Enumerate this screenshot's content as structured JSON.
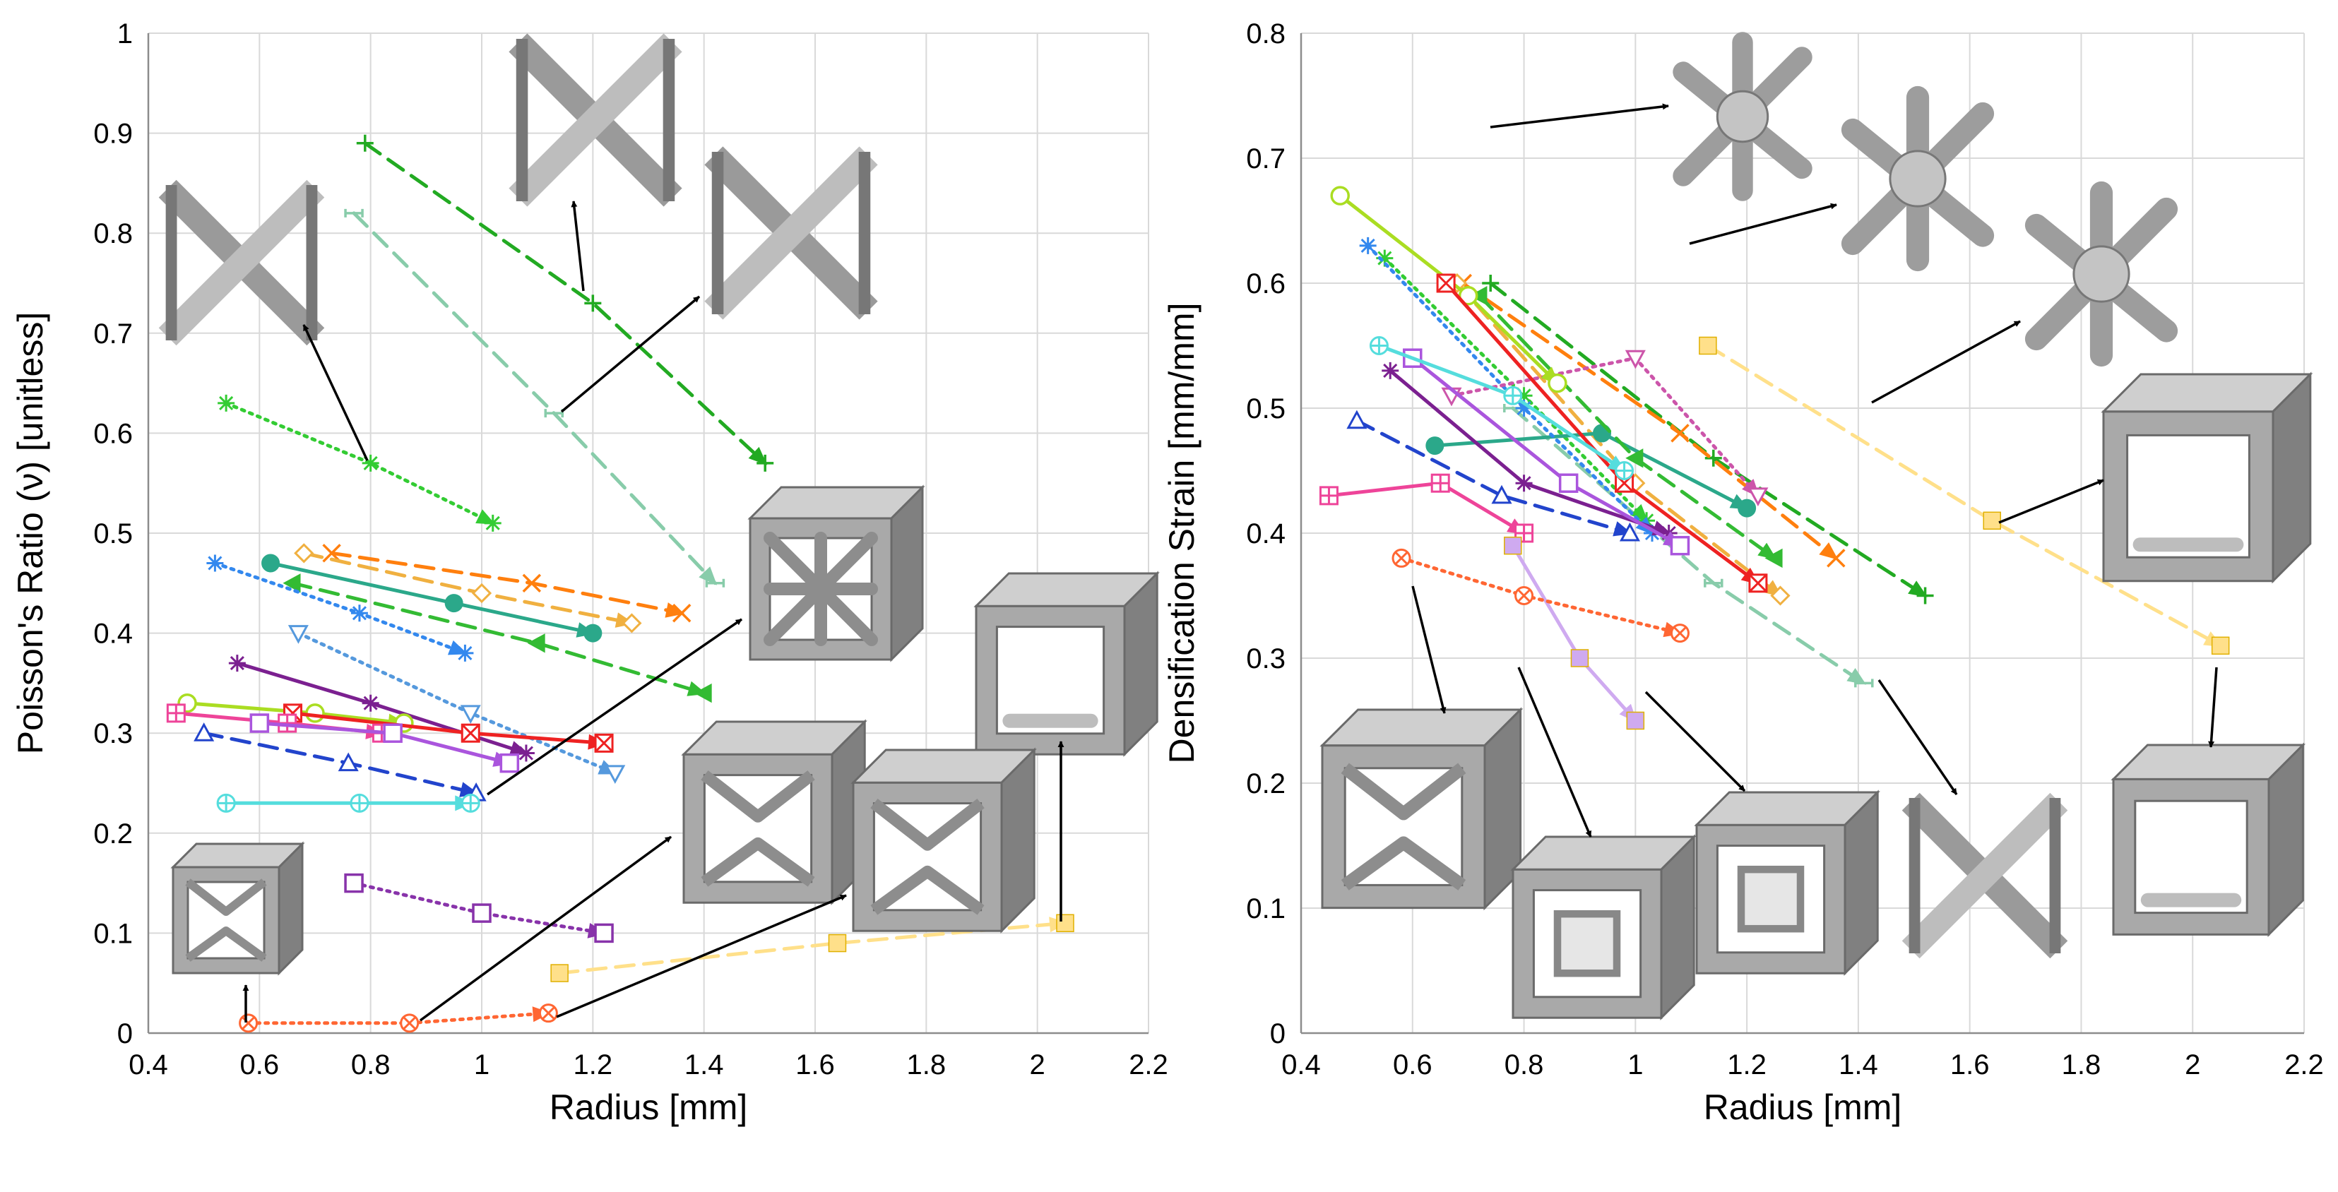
{
  "chart_data": [
    {
      "type": "scatter",
      "title": "",
      "xlabel": "Radius [mm]",
      "ylabel": "Poisson's Ratio (ν) [unitless]",
      "xlim": [
        0.4,
        2.2
      ],
      "ylim": [
        0,
        1
      ],
      "xticks": [
        "0.4",
        "0.6",
        "0.8",
        "1",
        "1.2",
        "1.4",
        "1.6",
        "1.8",
        "2",
        "2.2"
      ],
      "yticks": [
        "0",
        "0.1",
        "0.2",
        "0.3",
        "0.4",
        "0.5",
        "0.6",
        "0.7",
        "0.8",
        "0.9",
        "1"
      ],
      "grid": true,
      "legend": "none",
      "series": [
        {
          "name": "s1",
          "color": "#22aa22",
          "marker": "plus",
          "dash": "long",
          "points": [
            [
              0.79,
              0.89
            ],
            [
              1.2,
              0.73
            ],
            [
              1.51,
              0.57
            ]
          ]
        },
        {
          "name": "s2",
          "color": "#88ccaa",
          "marker": "bar",
          "dash": "long",
          "points": [
            [
              0.77,
              0.82
            ],
            [
              1.13,
              0.62
            ],
            [
              1.42,
              0.45
            ]
          ]
        },
        {
          "name": "s3",
          "color": "#33cc33",
          "marker": "asterisk",
          "dash": "dot",
          "points": [
            [
              0.54,
              0.63
            ],
            [
              0.8,
              0.57
            ],
            [
              1.02,
              0.51
            ]
          ]
        },
        {
          "name": "s4",
          "color": "#ff7f0e",
          "marker": "x",
          "dash": "long",
          "points": [
            [
              0.73,
              0.48
            ],
            [
              1.09,
              0.45
            ],
            [
              1.36,
              0.42
            ]
          ]
        },
        {
          "name": "s5",
          "color": "#f0b040",
          "marker": "diamond-open",
          "dash": "long",
          "points": [
            [
              0.68,
              0.48
            ],
            [
              1.0,
              0.44
            ],
            [
              1.27,
              0.41
            ]
          ]
        },
        {
          "name": "s6",
          "color": "#2ba88a",
          "marker": "circle-fill",
          "dash": "solid",
          "points": [
            [
              0.62,
              0.47
            ],
            [
              0.95,
              0.43
            ],
            [
              1.2,
              0.4
            ]
          ]
        },
        {
          "name": "s7",
          "color": "#33bb33",
          "marker": "tri-left",
          "dash": "long",
          "points": [
            [
              0.66,
              0.45
            ],
            [
              1.1,
              0.39
            ],
            [
              1.4,
              0.34
            ]
          ]
        },
        {
          "name": "s8",
          "color": "#3388ee",
          "marker": "asterisk",
          "dash": "dot",
          "points": [
            [
              0.52,
              0.47
            ],
            [
              0.78,
              0.42
            ],
            [
              0.97,
              0.38
            ]
          ]
        },
        {
          "name": "s9",
          "color": "#5599dd",
          "marker": "tri-down",
          "dash": "dot",
          "points": [
            [
              0.67,
              0.4
            ],
            [
              0.98,
              0.32
            ],
            [
              1.24,
              0.26
            ]
          ]
        },
        {
          "name": "s10",
          "color": "#7b2090",
          "marker": "asterisk",
          "dash": "solid",
          "points": [
            [
              0.56,
              0.37
            ],
            [
              0.8,
              0.33
            ],
            [
              1.08,
              0.28
            ]
          ]
        },
        {
          "name": "s11",
          "color": "#aadd22",
          "marker": "circle-open",
          "dash": "solid",
          "points": [
            [
              0.47,
              0.33
            ],
            [
              0.7,
              0.32
            ],
            [
              0.86,
              0.31
            ]
          ]
        },
        {
          "name": "s12",
          "color": "#ee2222",
          "marker": "square-x",
          "dash": "solid",
          "points": [
            [
              0.66,
              0.32
            ],
            [
              0.98,
              0.3
            ],
            [
              1.22,
              0.29
            ]
          ]
        },
        {
          "name": "s13",
          "color": "#ee4499",
          "marker": "square-plus",
          "dash": "solid",
          "points": [
            [
              0.45,
              0.32
            ],
            [
              0.65,
              0.31
            ],
            [
              0.82,
              0.3
            ]
          ]
        },
        {
          "name": "s14",
          "color": "#aa55dd",
          "marker": "square-open",
          "dash": "solid",
          "points": [
            [
              0.6,
              0.31
            ],
            [
              0.84,
              0.3
            ],
            [
              1.05,
              0.27
            ]
          ]
        },
        {
          "name": "s15",
          "color": "#2244cc",
          "marker": "tri-up",
          "dash": "long",
          "points": [
            [
              0.5,
              0.3
            ],
            [
              0.76,
              0.27
            ],
            [
              0.99,
              0.24
            ]
          ]
        },
        {
          "name": "s16",
          "color": "#55dddd",
          "marker": "circle-plus",
          "dash": "solid",
          "points": [
            [
              0.54,
              0.23
            ],
            [
              0.78,
              0.23
            ],
            [
              0.98,
              0.23
            ]
          ]
        },
        {
          "name": "s17",
          "color": "#8833aa",
          "marker": "square-open",
          "dash": "dot",
          "points": [
            [
              0.77,
              0.15
            ],
            [
              1.0,
              0.12
            ],
            [
              1.22,
              0.1
            ]
          ]
        },
        {
          "name": "s18",
          "color": "#ffe08a",
          "marker": "square-fill",
          "dash": "long",
          "points": [
            [
              1.14,
              0.06
            ],
            [
              1.64,
              0.09
            ],
            [
              2.05,
              0.11
            ]
          ]
        },
        {
          "name": "s19",
          "color": "#ff6633",
          "marker": "circle-cross",
          "dash": "dot",
          "points": [
            [
              0.58,
              0.01
            ],
            [
              0.87,
              0.01
            ],
            [
              1.12,
              0.02
            ]
          ]
        }
      ]
    },
    {
      "type": "scatter",
      "title": "",
      "xlabel": "Radius [mm]",
      "ylabel": "Densification Strain [mm/mm]",
      "xlim": [
        0.4,
        2.2
      ],
      "ylim": [
        0,
        0.8
      ],
      "xticks": [
        "0.4",
        "0.6",
        "0.8",
        "1",
        "1.2",
        "1.4",
        "1.6",
        "1.8",
        "2",
        "2.2"
      ],
      "yticks": [
        "0",
        "0.1",
        "0.2",
        "0.3",
        "0.4",
        "0.5",
        "0.6",
        "0.7",
        "0.8"
      ],
      "grid": true,
      "legend": "none",
      "series": [
        {
          "name": "s1",
          "color": "#22aa22",
          "marker": "plus",
          "dash": "long",
          "points": [
            [
              0.74,
              0.6
            ],
            [
              1.14,
              0.46
            ],
            [
              1.52,
              0.35
            ]
          ]
        },
        {
          "name": "s2",
          "color": "#88ccaa",
          "marker": "bar",
          "dash": "long",
          "points": [
            [
              0.78,
              0.5
            ],
            [
              1.14,
              0.36
            ],
            [
              1.41,
              0.28
            ]
          ]
        },
        {
          "name": "s3",
          "color": "#33cc33",
          "marker": "asterisk",
          "dash": "dot",
          "points": [
            [
              0.55,
              0.62
            ],
            [
              0.8,
              0.51
            ],
            [
              1.02,
              0.41
            ]
          ]
        },
        {
          "name": "s4",
          "color": "#ff7f0e",
          "marker": "x",
          "dash": "long",
          "points": [
            [
              0.69,
              0.6
            ],
            [
              1.08,
              0.48
            ],
            [
              1.36,
              0.38
            ]
          ]
        },
        {
          "name": "s5",
          "color": "#f0b040",
          "marker": "diamond-open",
          "dash": "long",
          "points": [
            [
              0.68,
              0.6
            ],
            [
              1.0,
              0.44
            ],
            [
              1.26,
              0.35
            ]
          ]
        },
        {
          "name": "s6",
          "color": "#2ba88a",
          "marker": "circle-fill",
          "dash": "solid",
          "points": [
            [
              0.64,
              0.47
            ],
            [
              0.94,
              0.48
            ],
            [
              1.2,
              0.42
            ]
          ]
        },
        {
          "name": "s7",
          "color": "#33bb33",
          "marker": "tri-left",
          "dash": "long",
          "points": [
            [
              0.72,
              0.59
            ],
            [
              1.0,
              0.46
            ],
            [
              1.25,
              0.38
            ]
          ]
        },
        {
          "name": "s8",
          "color": "#3388ee",
          "marker": "asterisk",
          "dash": "dot",
          "points": [
            [
              0.52,
              0.63
            ],
            [
              0.8,
              0.5
            ],
            [
              1.03,
              0.4
            ]
          ]
        },
        {
          "name": "s9",
          "color": "#cc55aa",
          "marker": "tri-down",
          "dash": "dot",
          "points": [
            [
              0.67,
              0.51
            ],
            [
              1.0,
              0.54
            ],
            [
              1.22,
              0.43
            ]
          ]
        },
        {
          "name": "s10",
          "color": "#7b2090",
          "marker": "asterisk",
          "dash": "solid",
          "points": [
            [
              0.56,
              0.53
            ],
            [
              0.8,
              0.44
            ],
            [
              1.06,
              0.4
            ]
          ]
        },
        {
          "name": "s11",
          "color": "#aadd22",
          "marker": "circle-open",
          "dash": "solid",
          "points": [
            [
              0.47,
              0.67
            ],
            [
              0.7,
              0.59
            ],
            [
              0.86,
              0.52
            ]
          ]
        },
        {
          "name": "s12",
          "color": "#ee2222",
          "marker": "square-x",
          "dash": "solid",
          "points": [
            [
              0.66,
              0.6
            ],
            [
              0.98,
              0.44
            ],
            [
              1.22,
              0.36
            ]
          ]
        },
        {
          "name": "s13",
          "color": "#ee4499",
          "marker": "square-plus",
          "dash": "solid",
          "points": [
            [
              0.45,
              0.43
            ],
            [
              0.65,
              0.44
            ],
            [
              0.8,
              0.4
            ]
          ]
        },
        {
          "name": "s14",
          "color": "#aa55dd",
          "marker": "square-open",
          "dash": "solid",
          "points": [
            [
              0.6,
              0.54
            ],
            [
              0.88,
              0.44
            ],
            [
              1.08,
              0.39
            ]
          ]
        },
        {
          "name": "s15",
          "color": "#2244cc",
          "marker": "tri-up",
          "dash": "long",
          "points": [
            [
              0.5,
              0.49
            ],
            [
              0.76,
              0.43
            ],
            [
              0.99,
              0.4
            ]
          ]
        },
        {
          "name": "s16",
          "color": "#55dddd",
          "marker": "circle-plus",
          "dash": "solid",
          "points": [
            [
              0.54,
              0.55
            ],
            [
              0.78,
              0.51
            ],
            [
              0.98,
              0.45
            ]
          ]
        },
        {
          "name": "s17",
          "color": "#cfaaf0",
          "marker": "square-fill",
          "dash": "solid",
          "points": [
            [
              0.78,
              0.39
            ],
            [
              0.9,
              0.3
            ],
            [
              1.0,
              0.25
            ]
          ]
        },
        {
          "name": "s18",
          "color": "#ffe08a",
          "marker": "square-fill",
          "dash": "long",
          "points": [
            [
              1.13,
              0.55
            ],
            [
              1.64,
              0.41
            ],
            [
              2.05,
              0.31
            ]
          ]
        },
        {
          "name": "s19",
          "color": "#ff6633",
          "marker": "circle-cross",
          "dash": "dot",
          "points": [
            [
              0.58,
              0.38
            ],
            [
              0.8,
              0.35
            ],
            [
              1.08,
              0.32
            ]
          ]
        }
      ]
    }
  ]
}
